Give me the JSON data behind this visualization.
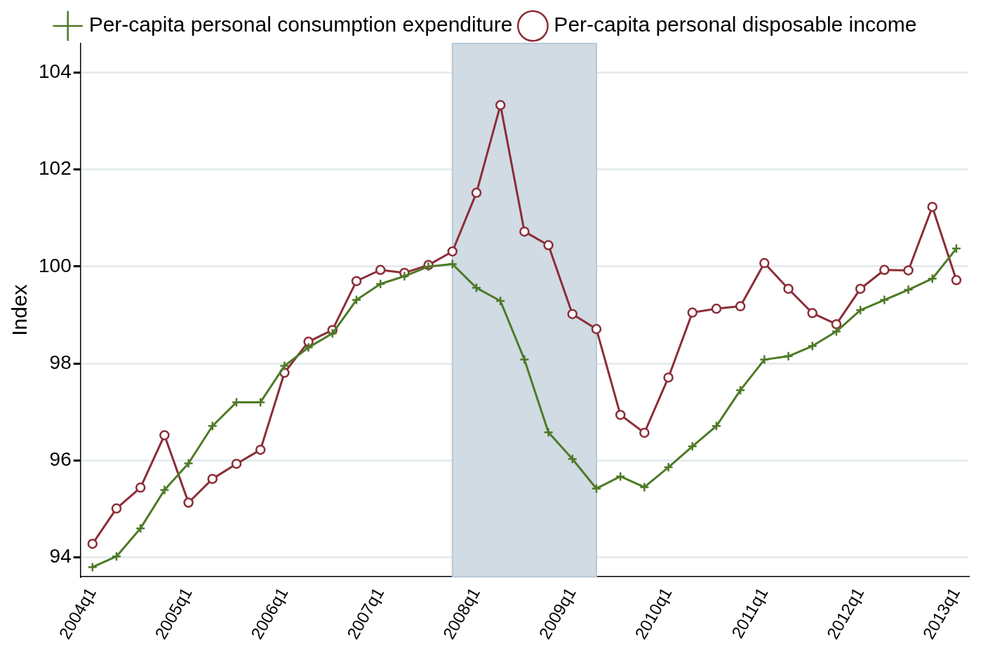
{
  "chart_data": {
    "type": "line",
    "ylabel": "Index",
    "legend": "top",
    "grid": "y",
    "categories": [
      "2004q1",
      null,
      null,
      null,
      "2005q1",
      null,
      null,
      null,
      "2006q1",
      null,
      null,
      null,
      "2007q1",
      null,
      null,
      null,
      "2008q1",
      null,
      null,
      null,
      "2009q1",
      null,
      null,
      null,
      "2010q1",
      null,
      null,
      null,
      "2011q1",
      null,
      null,
      null,
      "2012q1",
      null,
      null,
      null,
      "2013q1"
    ],
    "ylim": [
      93.6,
      104.6
    ],
    "yticks": [
      94,
      96,
      98,
      100,
      102,
      104
    ],
    "series": [
      {
        "name": "Per-capita personal disposable income",
        "color": "#8c2d38",
        "marker": "circle",
        "values": [
          94.28,
          95.01,
          95.44,
          96.52,
          95.13,
          95.62,
          95.93,
          96.22,
          97.81,
          98.45,
          98.69,
          99.7,
          99.93,
          99.87,
          100.03,
          100.31,
          101.52,
          103.33,
          100.72,
          100.44,
          99.02,
          98.71,
          96.94,
          96.57,
          97.71,
          99.05,
          99.13,
          99.18,
          100.07,
          99.54,
          99.04,
          98.81,
          99.54,
          99.93,
          99.92,
          101.23,
          99.72
        ]
      },
      {
        "name": "Per-capita personal consumption expenditure",
        "color": "#4e7a27",
        "marker": "cross",
        "values": [
          93.8,
          94.02,
          94.6,
          95.39,
          95.94,
          96.71,
          97.2,
          97.2,
          97.95,
          98.33,
          98.62,
          99.31,
          99.64,
          99.8,
          100,
          100.05,
          99.56,
          99.29,
          98.08,
          96.58,
          96.03,
          95.42,
          95.67,
          95.45,
          95.86,
          96.29,
          96.71,
          97.45,
          98.08,
          98.15,
          98.36,
          98.66,
          99.1,
          99.31,
          99.52,
          99.75,
          100.37
        ]
      }
    ]
  }
}
